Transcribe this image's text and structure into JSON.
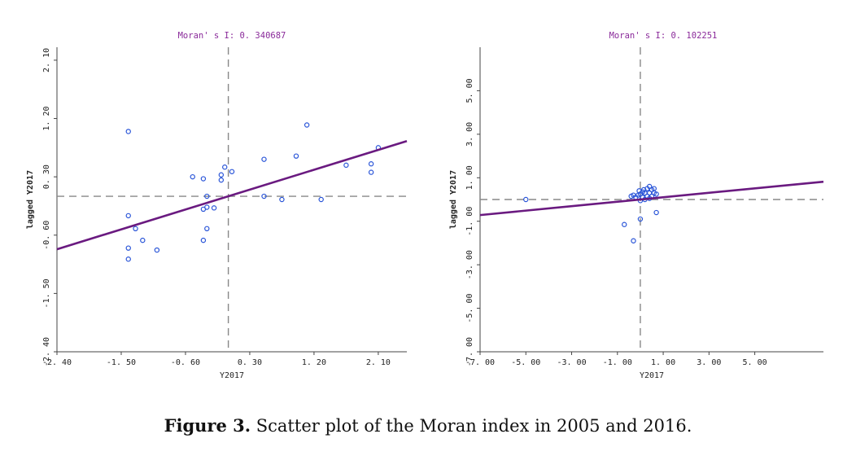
{
  "caption": {
    "label": "Figure 3.",
    "text": " Scatter plot of the Moran index in 2005 and 2016."
  },
  "colors": {
    "point": "#2a55d8",
    "fit_line": "#6a1a80",
    "title": "#8a2a9a",
    "axis": "#444444",
    "crosshair": "#888888"
  },
  "chart_data": [
    {
      "type": "scatter",
      "title": "Moran' s I: 0. 340687",
      "xlabel": "Y2017",
      "ylabel": "lagged Y2017",
      "xlim": [
        -2.4,
        2.5
      ],
      "ylim": [
        -2.4,
        2.3
      ],
      "xticks": [
        -2.4,
        -1.5,
        -0.6,
        0.3,
        1.2,
        2.1
      ],
      "xtick_labels": [
        "-2. 40",
        "-1. 50",
        "-0. 60",
        "0. 30",
        "1. 20",
        "2. 10"
      ],
      "yticks": [
        -2.4,
        -1.5,
        -0.6,
        0.3,
        1.2,
        2.1
      ],
      "ytick_labels": [
        "-2. 40",
        "-1. 50",
        "-0. 60",
        "0. 30",
        "1. 20",
        "2. 10"
      ],
      "slope": 0.340687,
      "crosshair": [
        0,
        0
      ],
      "grid": false,
      "points": [
        [
          -1.4,
          1.0
        ],
        [
          -1.4,
          -0.3
        ],
        [
          -1.3,
          -0.5
        ],
        [
          -1.2,
          -0.68
        ],
        [
          -1.4,
          -0.8
        ],
        [
          -1.4,
          -0.97
        ],
        [
          -1.0,
          -0.83
        ],
        [
          -0.5,
          0.3
        ],
        [
          -0.35,
          0.27
        ],
        [
          -0.35,
          -0.68
        ],
        [
          -0.3,
          -0.5
        ],
        [
          -0.3,
          -0.17
        ],
        [
          -0.3,
          0.0
        ],
        [
          -0.35,
          -0.2
        ],
        [
          -0.2,
          -0.18
        ],
        [
          -0.1,
          0.25
        ],
        [
          -0.1,
          0.33
        ],
        [
          -0.05,
          0.45
        ],
        [
          0.05,
          0.38
        ],
        [
          0.5,
          0.57
        ],
        [
          0.5,
          0.0
        ],
        [
          0.75,
          -0.05
        ],
        [
          0.95,
          0.62
        ],
        [
          1.1,
          1.1
        ],
        [
          1.3,
          -0.05
        ],
        [
          1.65,
          0.48
        ],
        [
          2.0,
          0.5
        ],
        [
          2.0,
          0.37
        ],
        [
          2.1,
          0.75
        ]
      ]
    },
    {
      "type": "scatter",
      "title": "Moran' s I: 0. 102251",
      "xlabel": "Y2017",
      "ylabel": "lagged Y2017",
      "xlim": [
        -7.0,
        8.0
      ],
      "ylim": [
        -7.0,
        7.0
      ],
      "xticks": [
        -7,
        -5,
        -3,
        -1,
        1,
        3,
        5
      ],
      "xtick_labels": [
        "-7. 00",
        "-5. 00",
        "-3. 00",
        "-1. 00",
        "1. 00",
        "3. 00",
        "5. 00"
      ],
      "yticks": [
        -7,
        -5,
        -3,
        -1,
        1,
        3,
        5
      ],
      "ytick_labels": [
        "-7. 00",
        "-5. 00",
        "-3. 00",
        "-1. 00",
        "1. 00",
        "3. 00",
        "5. 00"
      ],
      "slope": 0.102251,
      "crosshair": [
        0,
        0
      ],
      "grid": false,
      "points": [
        [
          -5.0,
          0.0
        ],
        [
          -0.7,
          -1.15
        ],
        [
          -0.3,
          -1.9
        ],
        [
          0.0,
          -0.9
        ],
        [
          0.7,
          -0.6
        ],
        [
          -0.4,
          0.15
        ],
        [
          -0.3,
          0.2
        ],
        [
          -0.2,
          0.1
        ],
        [
          -0.1,
          0.2
        ],
        [
          0.0,
          0.25
        ],
        [
          0.0,
          -0.05
        ],
        [
          0.1,
          0.35
        ],
        [
          0.1,
          0.1
        ],
        [
          0.2,
          0.0
        ],
        [
          0.2,
          0.3
        ],
        [
          0.3,
          0.5
        ],
        [
          0.3,
          0.15
        ],
        [
          0.4,
          0.6
        ],
        [
          0.4,
          0.3
        ],
        [
          0.4,
          0.05
        ],
        [
          0.5,
          0.45
        ],
        [
          0.5,
          0.15
        ],
        [
          0.6,
          0.3
        ],
        [
          0.6,
          0.5
        ],
        [
          0.7,
          0.25
        ],
        [
          0.15,
          0.45
        ],
        [
          -0.05,
          0.4
        ]
      ]
    }
  ]
}
